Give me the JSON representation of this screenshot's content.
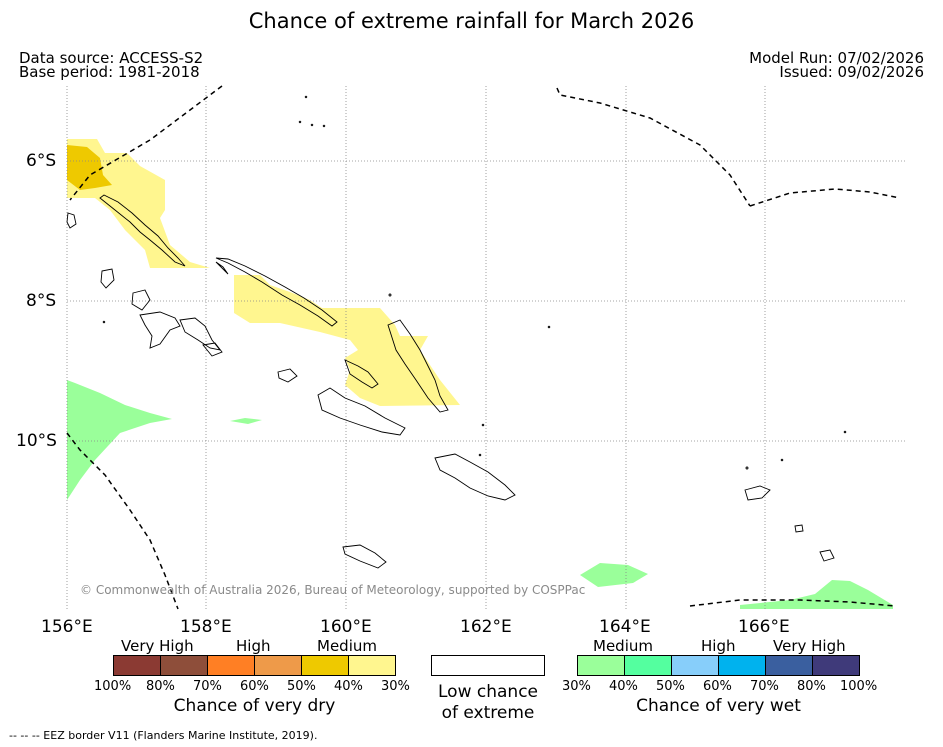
{
  "title": "Chance of extreme rainfall for March 2026",
  "meta": {
    "data_source": "Data source: ACCESS-S2",
    "base_period": "Base period: 1981-2018",
    "model_run": "Model Run: 07/02/2026",
    "issued": "Issued: 09/02/2026"
  },
  "map": {
    "lat_labels": [
      "6°S",
      "8°S",
      "10°S"
    ],
    "lon_labels": [
      "156°E",
      "158°E",
      "160°E",
      "162°E",
      "164°E",
      "166°E"
    ],
    "copyright": "© Commonwealth of Australia 2026, Bureau of Meteorology, supported by COSPPac"
  },
  "legend": {
    "dry": {
      "headers": [
        "Very High",
        "High",
        "Medium"
      ],
      "colors": [
        "#8b3a33",
        "#8e4e3a",
        "#ff7f24",
        "#ee9a49",
        "#eec900",
        "#fff68f"
      ],
      "ticks": [
        "100%",
        "80%",
        "70%",
        "60%",
        "50%",
        "40%",
        "30%"
      ],
      "caption": "Chance of very dry"
    },
    "low": {
      "caption_line1": "Low chance",
      "caption_line2": "of extreme"
    },
    "wet": {
      "headers": [
        "Medium",
        "High",
        "Very High"
      ],
      "colors": [
        "#9aff9a",
        "#54ff9f",
        "#87cefa",
        "#00b2ee",
        "#3a5f9f",
        "#3f3a7a"
      ],
      "ticks": [
        "30%",
        "40%",
        "50%",
        "60%",
        "70%",
        "80%",
        "100%"
      ],
      "caption": "Chance of very wet"
    }
  },
  "footer": {
    "eez": "--  --  -- EEZ border V11 (Flanders Marine Institute, 2019)."
  }
}
